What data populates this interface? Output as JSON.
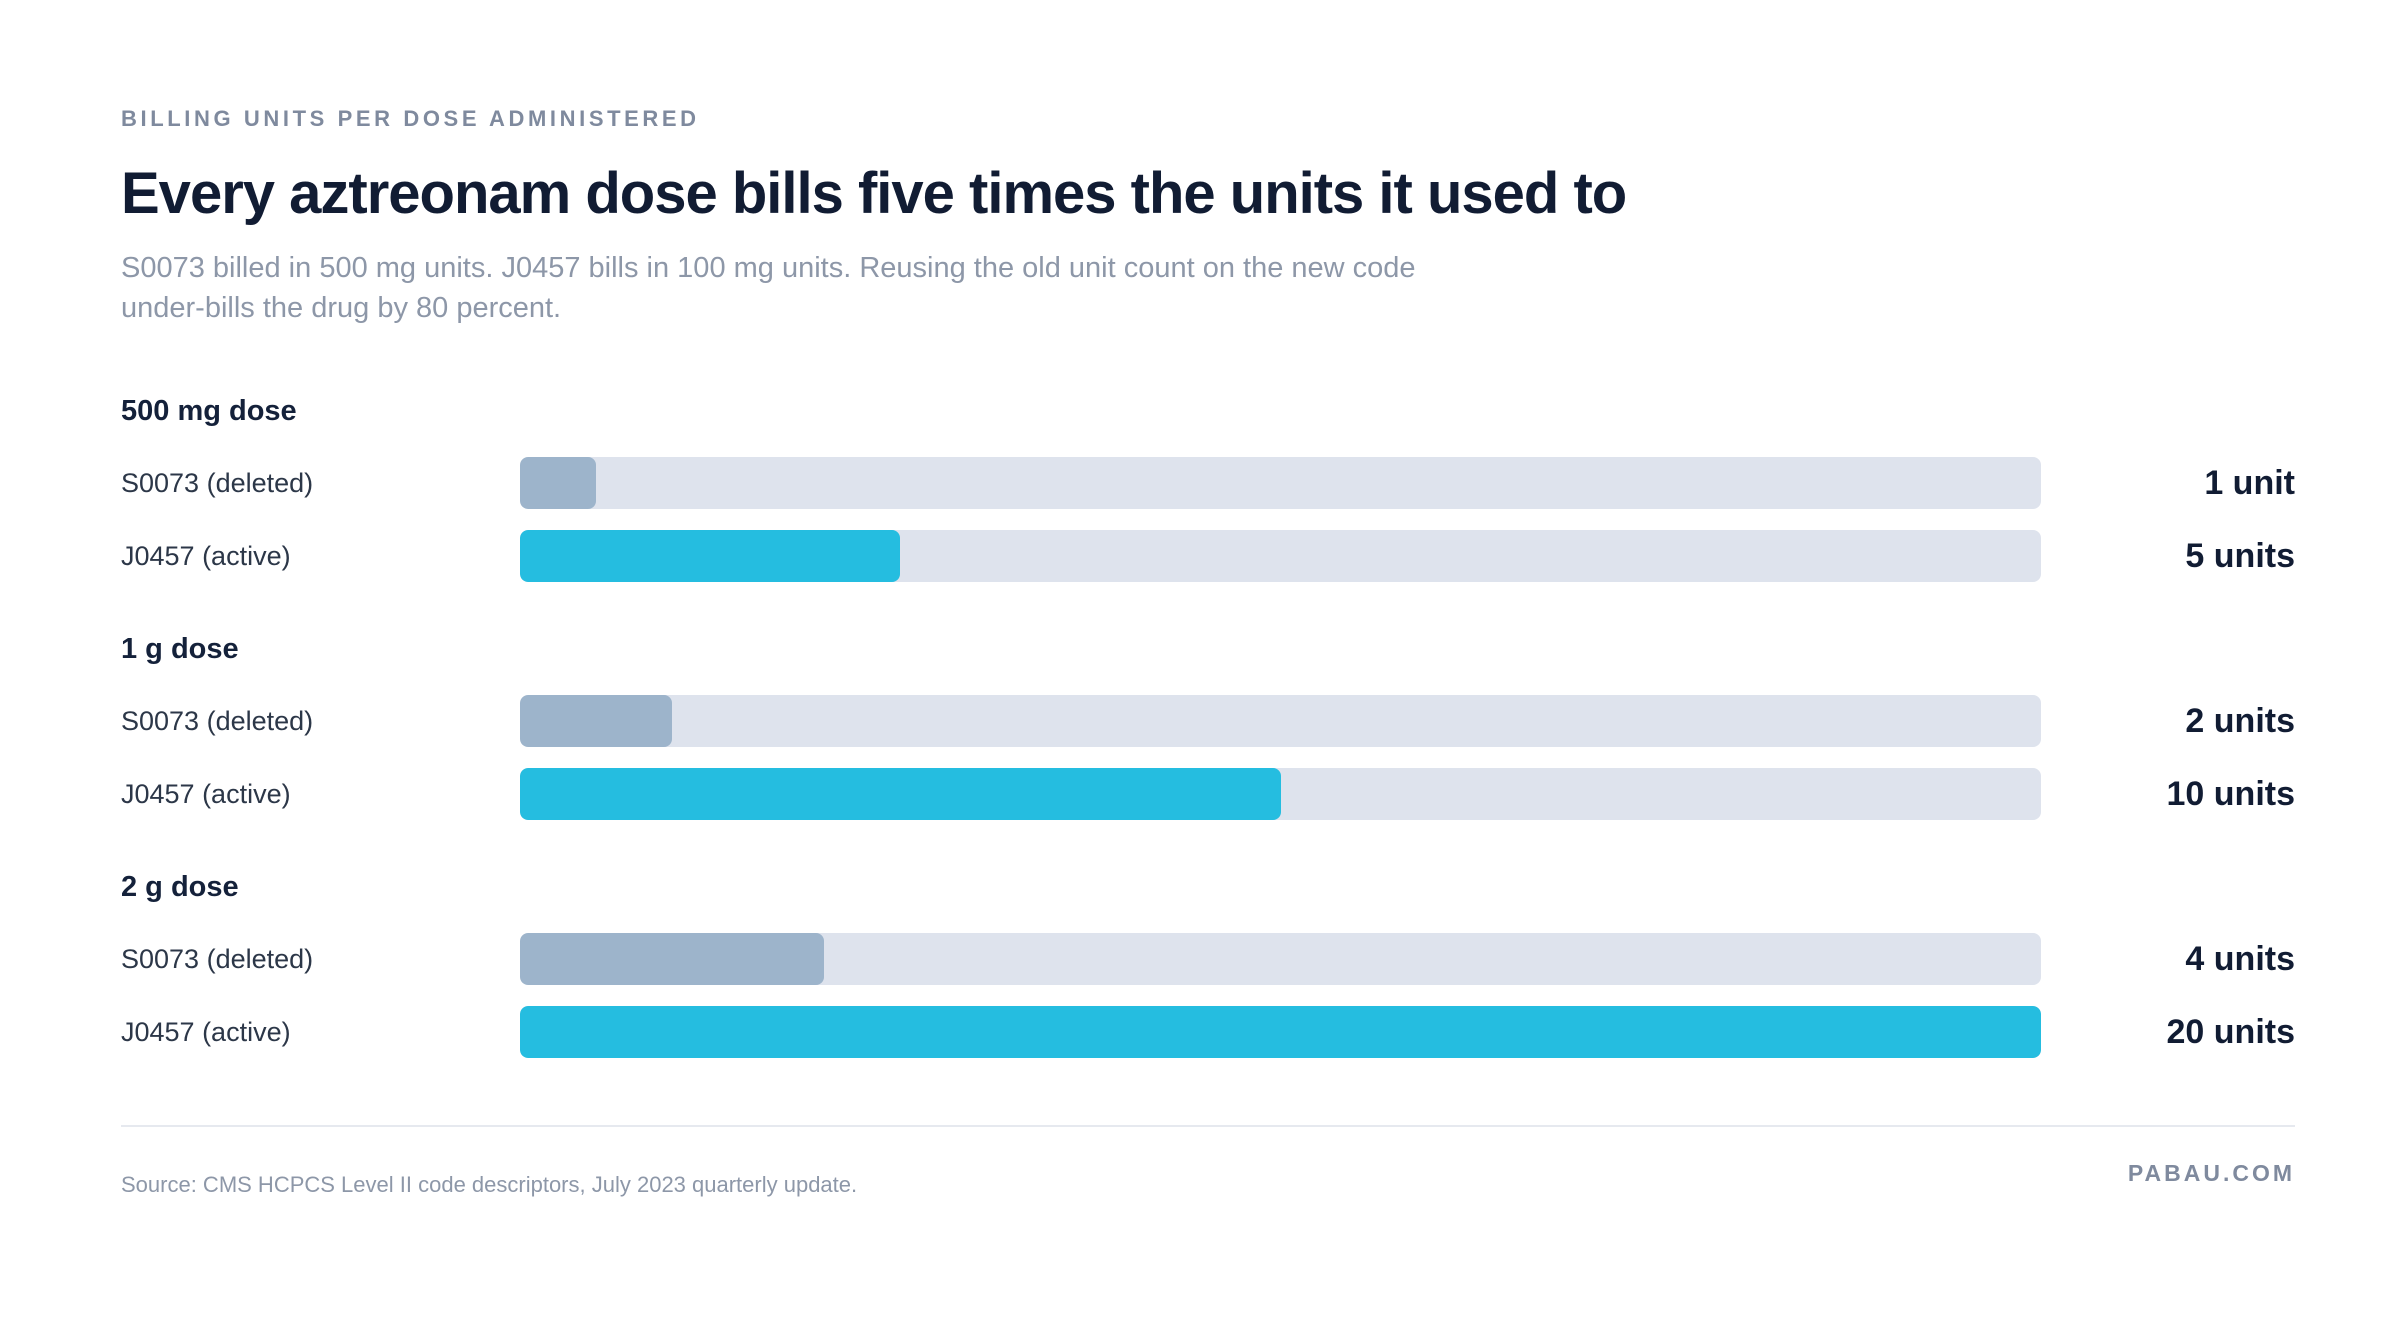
{
  "header": {
    "eyebrow": "BILLING UNITS PER DOSE ADMINISTERED",
    "title": "Every aztreonam dose bills five times the units it used to",
    "subtitle": "S0073 billed in 500 mg units. J0457 bills in 100 mg units. Reusing the old unit count on the new code under-bills the drug by 80 percent."
  },
  "chart_data": {
    "type": "bar",
    "orientation": "horizontal",
    "xlim": [
      0,
      20
    ],
    "grid": false,
    "groups": [
      {
        "label": "500 mg dose",
        "rows": [
          {
            "label": "S0073 (deleted)",
            "value": 1,
            "value_label": "1 unit",
            "series": "deleted"
          },
          {
            "label": "J0457 (active)",
            "value": 5,
            "value_label": "5 units",
            "series": "active"
          }
        ]
      },
      {
        "label": "1 g dose",
        "rows": [
          {
            "label": "S0073 (deleted)",
            "value": 2,
            "value_label": "2 units",
            "series": "deleted"
          },
          {
            "label": "J0457 (active)",
            "value": 10,
            "value_label": "10 units",
            "series": "active"
          }
        ]
      },
      {
        "label": "2 g dose",
        "rows": [
          {
            "label": "S0073 (deleted)",
            "value": 4,
            "value_label": "4 units",
            "series": "deleted"
          },
          {
            "label": "J0457 (active)",
            "value": 20,
            "value_label": "20 units",
            "series": "active"
          }
        ]
      }
    ],
    "colors": {
      "deleted": "#9db4cb",
      "active": "#25bde0",
      "track": "#dee3ed"
    }
  },
  "footer": {
    "source": "Source: CMS HCPCS Level II code descriptors, July 2023 quarterly update.",
    "brand": "PABAU.COM"
  }
}
